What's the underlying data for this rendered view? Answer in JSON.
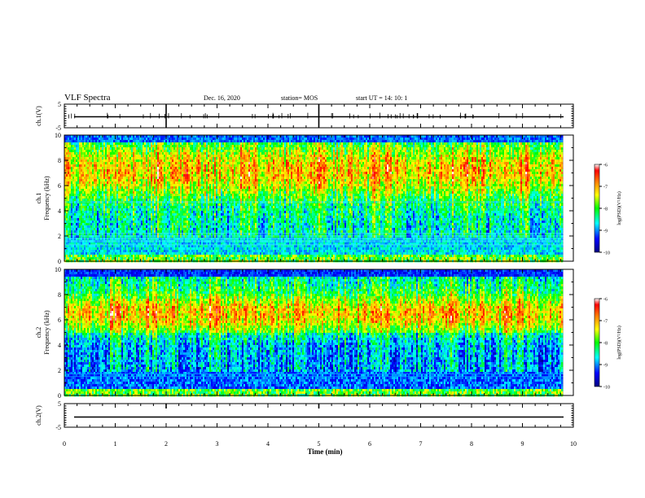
{
  "header": {
    "title": "VLF Spectra",
    "date": "Dec. 16, 2020",
    "station": "station= MOS",
    "start": "start  UT =   14: 10: 1"
  },
  "colors": {
    "background": "#ffffff",
    "axis": "#000000",
    "colormap": [
      "#000080",
      "#0000ff",
      "#00ffff",
      "#00ff00",
      "#ffff00",
      "#ff8000",
      "#ff0000",
      "#ffffff"
    ]
  },
  "chart_data": [
    {
      "type": "line",
      "id": "ch1-waveform",
      "ylabel": "ch.1(V)",
      "ylim": [
        -5,
        5
      ],
      "yticks": [
        "5",
        "-5"
      ],
      "xlim": [
        0,
        10
      ],
      "trace_level": 0
    },
    {
      "type": "heatmap",
      "id": "ch1-spectrogram",
      "ylabel": "ch.1\nFrequency (kHz)",
      "ylim": [
        0,
        10
      ],
      "yticks": [
        "0",
        "2",
        "4",
        "6",
        "8",
        "10"
      ],
      "xlim": [
        0,
        10
      ],
      "data_end_min": 9.8,
      "colorbar": {
        "label": "log(PSD)(V²/Hz)",
        "range": [
          -10,
          -6
        ],
        "ticks": [
          "-6",
          "-7",
          "-8",
          "-9",
          "-10"
        ]
      }
    },
    {
      "type": "heatmap",
      "id": "ch2-spectrogram",
      "ylabel": "ch.2\nFrequency (kHz)",
      "ylim": [
        0,
        10
      ],
      "yticks": [
        "0",
        "2",
        "4",
        "6",
        "8",
        "10"
      ],
      "xlim": [
        0,
        10
      ],
      "data_end_min": 9.8,
      "colorbar": {
        "label": "log(PSD)(V²/Hz)",
        "range": [
          -10,
          -6
        ],
        "ticks": [
          "-6",
          "-7",
          "-8",
          "-9",
          "-10"
        ]
      }
    },
    {
      "type": "line",
      "id": "ch2-waveform",
      "ylabel": "ch.2(V)",
      "ylim": [
        -5,
        5
      ],
      "yticks": [
        "5",
        "-5"
      ],
      "xlim": [
        0,
        10
      ],
      "trace_level": 0
    }
  ],
  "xaxis": {
    "label": "Time  (min)",
    "ticks": [
      "0",
      "1",
      "2",
      "3",
      "4",
      "5",
      "6",
      "7",
      "8",
      "9",
      "10"
    ]
  }
}
